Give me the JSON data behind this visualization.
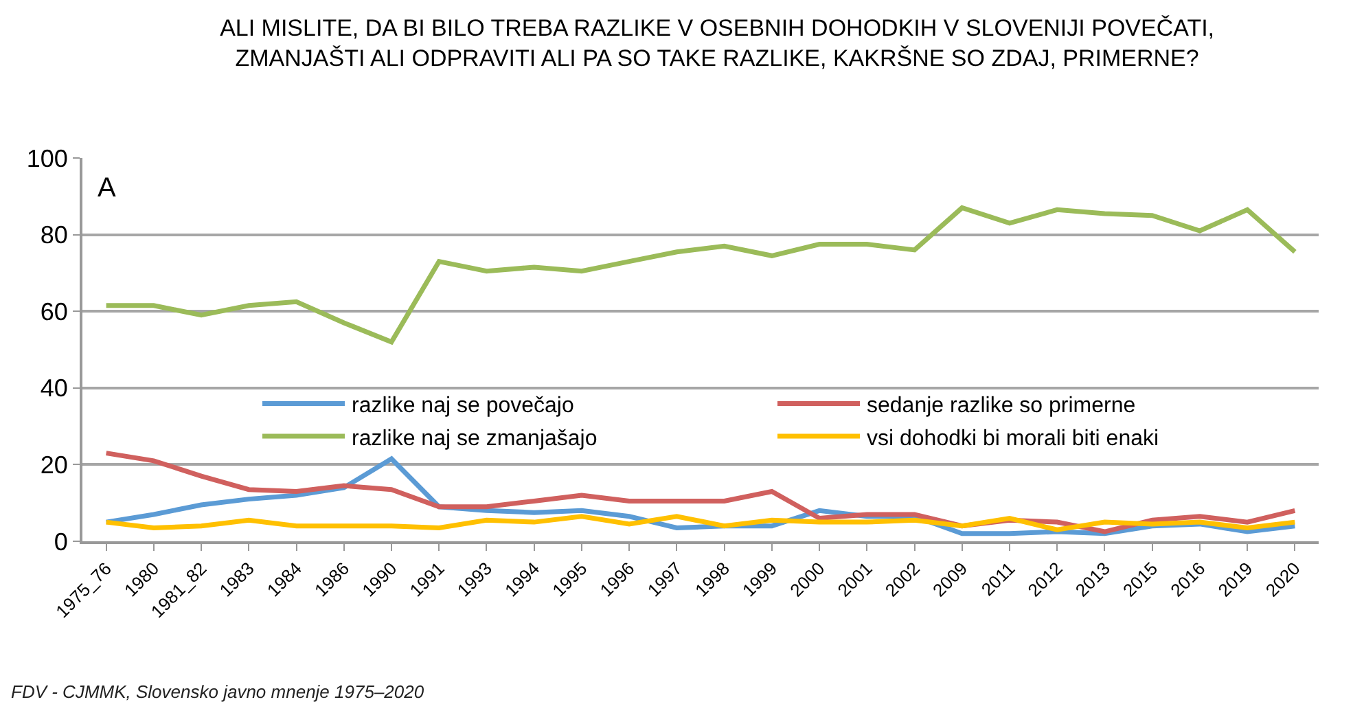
{
  "chart_data": {
    "type": "line",
    "title": "ALI MISLITE, DA BI BILO TREBA RAZLIKE V OSEBNIH DOHODKIH V SLOVENIJI POVEČATI,\nZMANJAŠTI ALI ODPRAVITI ALI PA SO TAKE RAZLIKE, KAKRŠNE SO ZDAJ, PRIMERNE?",
    "categories": [
      "1975_76",
      "1980",
      "1981_82",
      "1983",
      "1984",
      "1986",
      "1990",
      "1991",
      "1993",
      "1994",
      "1995",
      "1996",
      "1997",
      "1998",
      "1999",
      "2000",
      "2001",
      "2002",
      "2009",
      "2011",
      "2012",
      "2013",
      "2015",
      "2016",
      "2019",
      "2020"
    ],
    "series": [
      {
        "name": "razlike naj se povečajo",
        "color": "#5b9bd5",
        "values": [
          5,
          7,
          9.5,
          11,
          12,
          14,
          21.5,
          9,
          8,
          7.5,
          8,
          6.5,
          3.5,
          4,
          4,
          8,
          6.5,
          6.5,
          2,
          2,
          2.5,
          2,
          4,
          4.5,
          2.5,
          4
        ]
      },
      {
        "name": "sedanje razlike so primerne",
        "color": "#d0605e",
        "values": [
          23,
          21,
          17,
          13.5,
          13,
          14.5,
          13.5,
          9,
          9,
          10.5,
          12,
          10.5,
          10.5,
          10.5,
          13,
          6,
          7,
          7,
          4,
          5.5,
          5,
          2.5,
          5.5,
          6.5,
          5,
          8
        ]
      },
      {
        "name": "razlike naj se zmanjašajo",
        "color": "#9bbb59",
        "values": [
          61.5,
          61.5,
          59,
          61.5,
          62.5,
          57,
          52,
          73,
          70.5,
          71.5,
          70.5,
          73,
          75.5,
          77,
          74.5,
          77.5,
          77.5,
          76,
          87,
          83,
          86.5,
          85.5,
          85,
          81,
          86.5,
          75.5
        ]
      },
      {
        "name": "vsi dohodki bi morali biti enaki",
        "color": "#ffc000",
        "values": [
          5,
          3.5,
          4,
          5.5,
          4,
          4,
          4,
          3.5,
          5.5,
          5,
          6.5,
          4.5,
          6.5,
          4,
          5.5,
          5,
          5,
          5.5,
          4,
          6,
          3,
          5,
          4.5,
          5,
          3.5,
          5
        ]
      }
    ],
    "ylim": [
      0,
      100
    ],
    "yticks": [
      0,
      20,
      40,
      60,
      80,
      100
    ],
    "grid": "y",
    "legend": "center",
    "marker": "none",
    "line_style": "solid",
    "annotations": [
      "A",
      "FDV - CJMMK, Slovensko javno mnenje 1975–2020"
    ]
  }
}
